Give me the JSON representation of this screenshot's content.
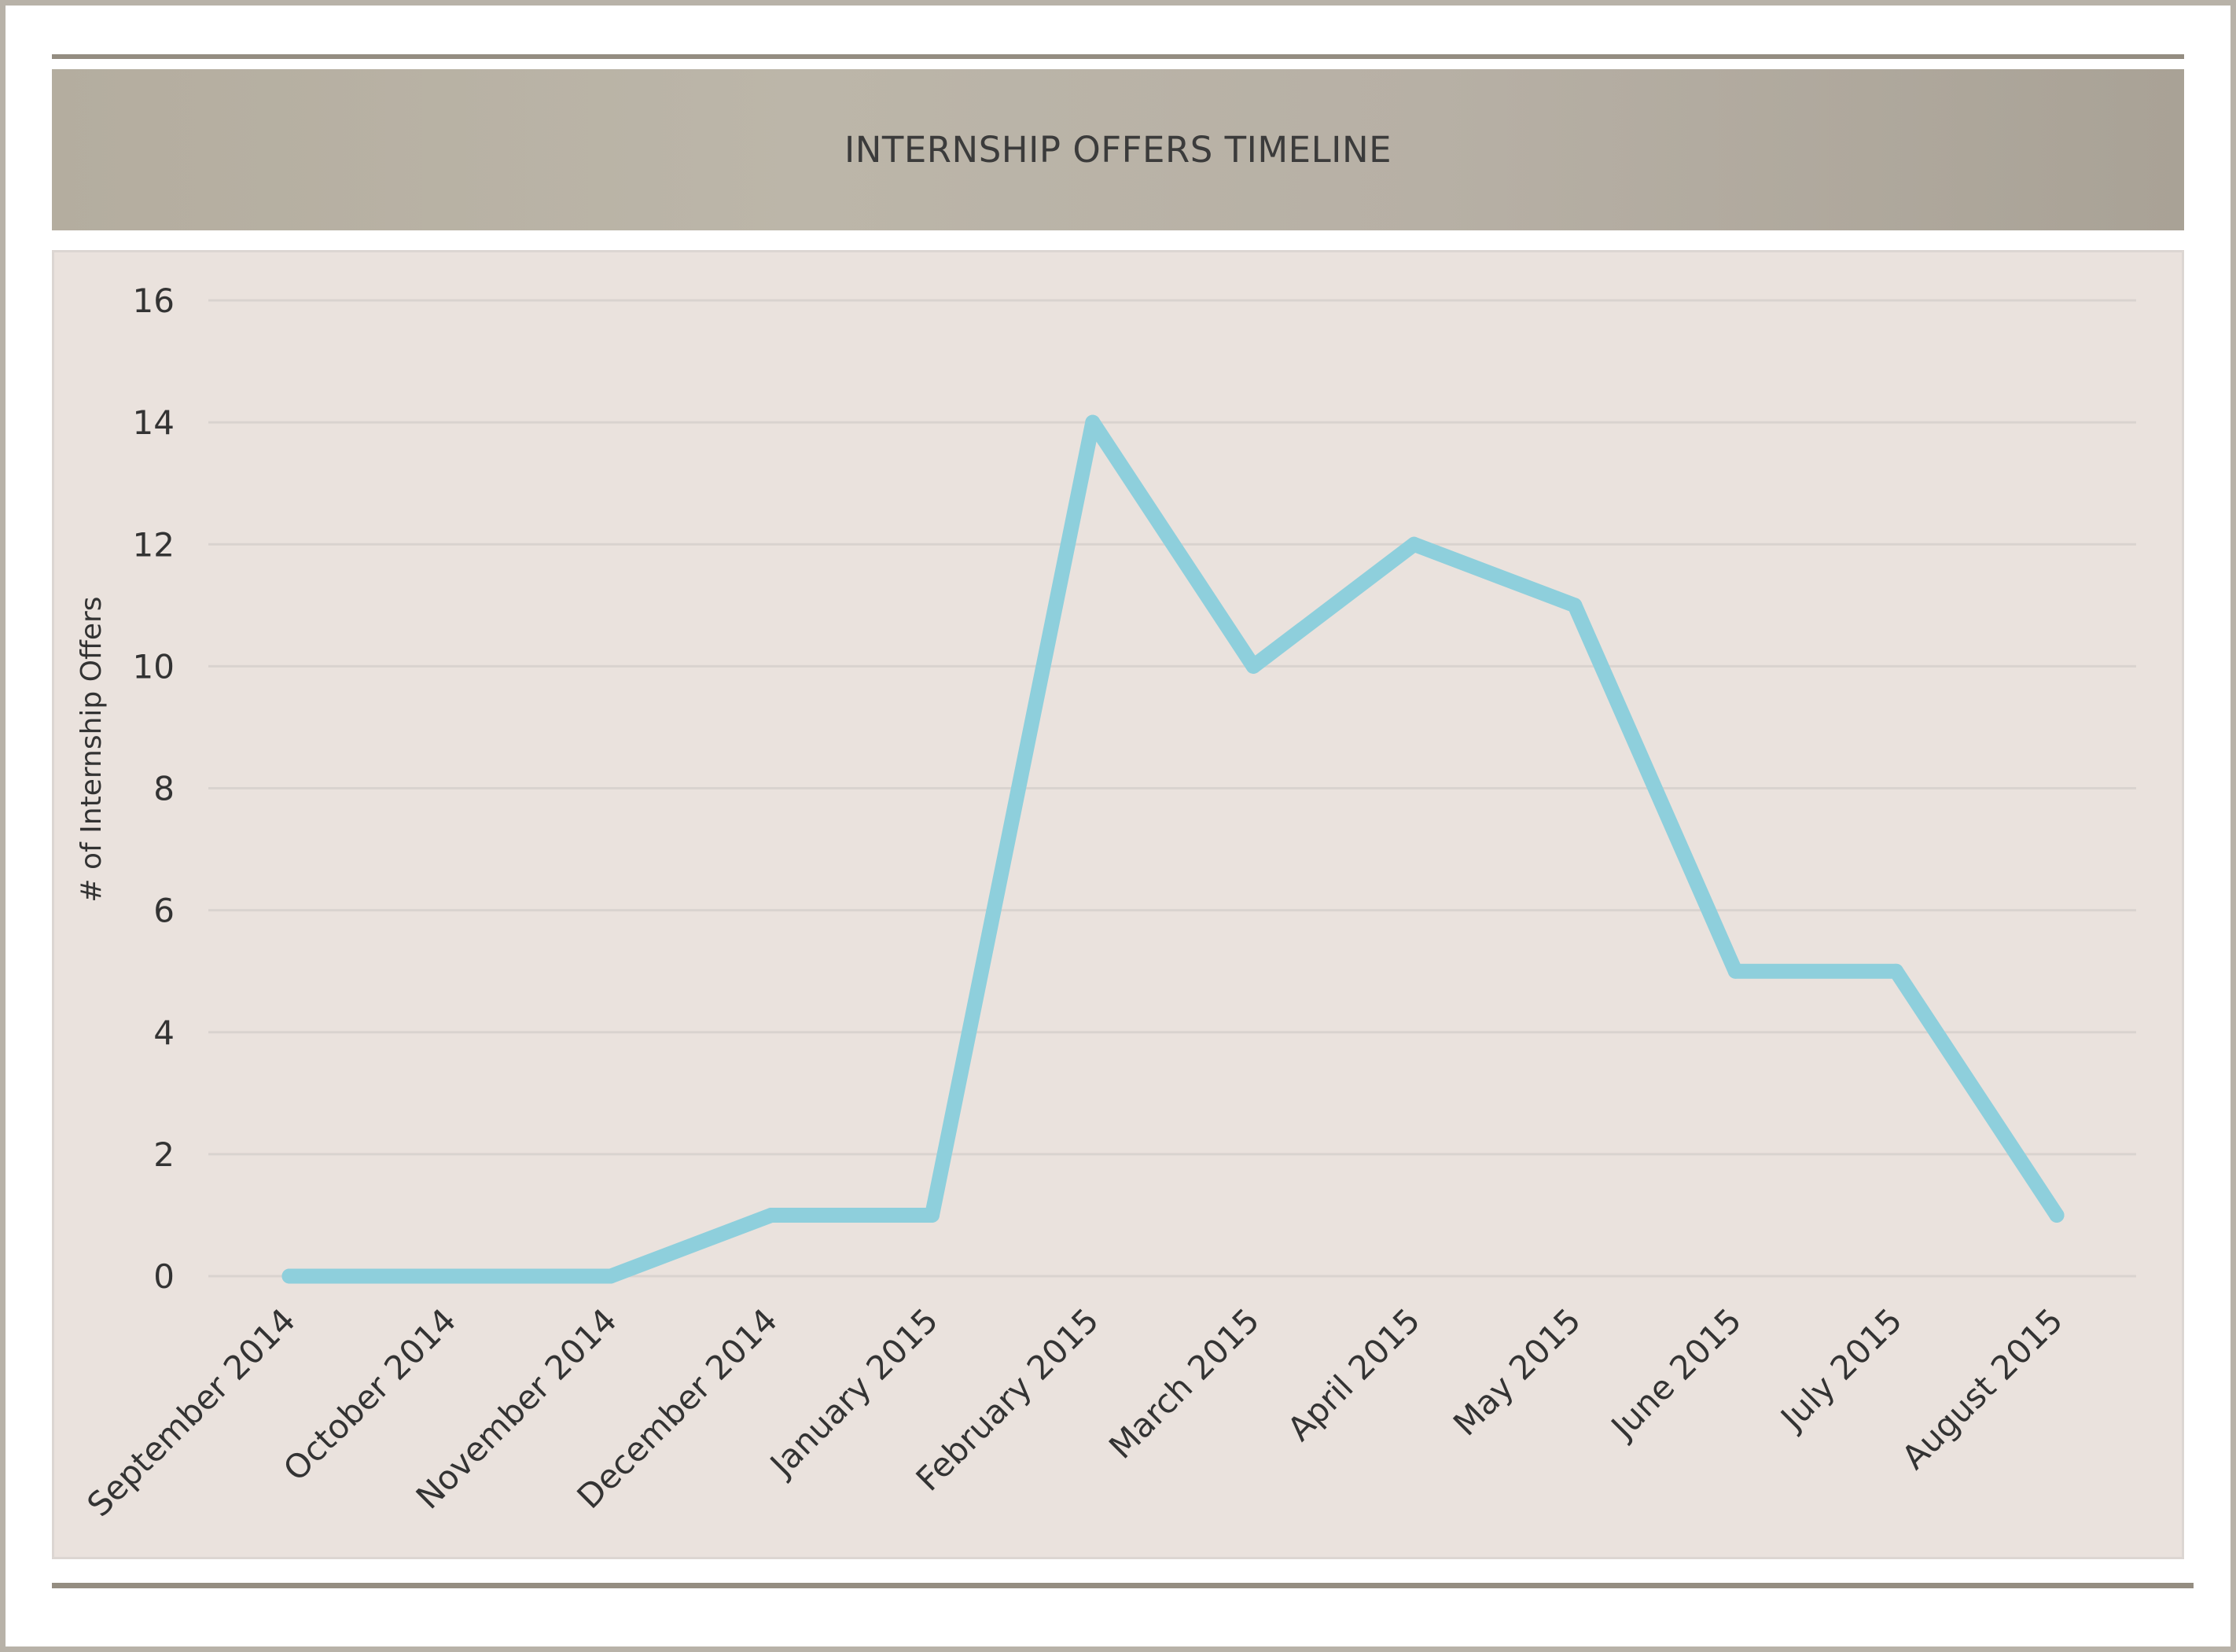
{
  "chart_data": {
    "type": "line",
    "title": "INTERNSHIP OFFERS TIMELINE",
    "xlabel": "",
    "ylabel": "# of Internship Offers",
    "categories": [
      "September 2014",
      "October 2014",
      "November 2014",
      "December 2014",
      "January 2015",
      "February 2015",
      "March 2015",
      "April 2015",
      "May 2015",
      "June 2015",
      "July 2015",
      "August 2015"
    ],
    "series": [
      {
        "values": [
          0,
          0,
          0,
          1,
          1,
          14,
          10,
          12,
          11,
          5,
          5,
          1
        ]
      }
    ],
    "ylim": [
      0,
      16
    ],
    "yticks": [
      0,
      2,
      4,
      6,
      8,
      10,
      12,
      14,
      16
    ],
    "grid": "horizontal",
    "legend": "none",
    "colors": {
      "line": "#8ecfdc",
      "grid": "#d9d3cf",
      "panel": "#eae2dd",
      "band": "#b8b1a5",
      "text": "#333333"
    }
  }
}
